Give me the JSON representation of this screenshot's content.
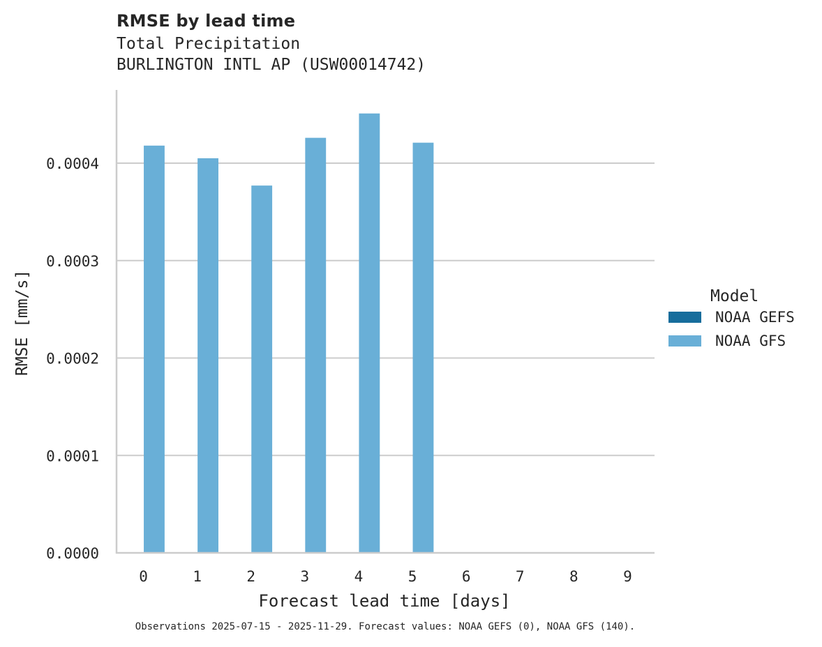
{
  "header": {
    "title": "RMSE by lead time",
    "subtitle_line1": "Total Precipitation",
    "subtitle_line2": "BURLINGTON INTL AP (USW00014742)"
  },
  "legend": {
    "title": "Model",
    "items": [
      {
        "label": "NOAA GEFS",
        "color": "#176d9c"
      },
      {
        "label": "NOAA GFS",
        "color": "#69afd7"
      }
    ]
  },
  "footnote": "Observations 2025-07-15 - 2025-11-29. Forecast values: NOAA GEFS (0), NOAA GFS (140).",
  "colors": {
    "gefs": "#176d9c",
    "gfs": "#69afd7",
    "grid": "#cccccc",
    "axis": "#cccccc",
    "text": "#262626"
  },
  "chart_data": {
    "type": "bar",
    "title": "RMSE by lead time",
    "subtitle": "Total Precipitation — BURLINGTON INTL AP (USW00014742)",
    "xlabel": "Forecast lead time [days]",
    "ylabel": "RMSE [mm/s]",
    "categories": [
      "0",
      "1",
      "2",
      "3",
      "4",
      "5",
      "6",
      "7",
      "8",
      "9"
    ],
    "series": [
      {
        "name": "NOAA GEFS",
        "color": "#176d9c",
        "values": [
          null,
          null,
          null,
          null,
          null,
          null,
          null,
          null,
          null,
          null
        ]
      },
      {
        "name": "NOAA GFS",
        "color": "#69afd7",
        "values": [
          0.000418,
          0.000405,
          0.000377,
          0.000426,
          0.000451,
          0.000421,
          null,
          null,
          null,
          null
        ]
      }
    ],
    "yticks": [
      "0.0000",
      "0.0001",
      "0.0002",
      "0.0003",
      "0.0004"
    ],
    "ytick_values": [
      0,
      0.0001,
      0.0002,
      0.0003,
      0.0004
    ],
    "ylim": [
      0,
      0.000475
    ],
    "grid": "horizontal",
    "legend_position": "right",
    "legend_title": "Model"
  }
}
